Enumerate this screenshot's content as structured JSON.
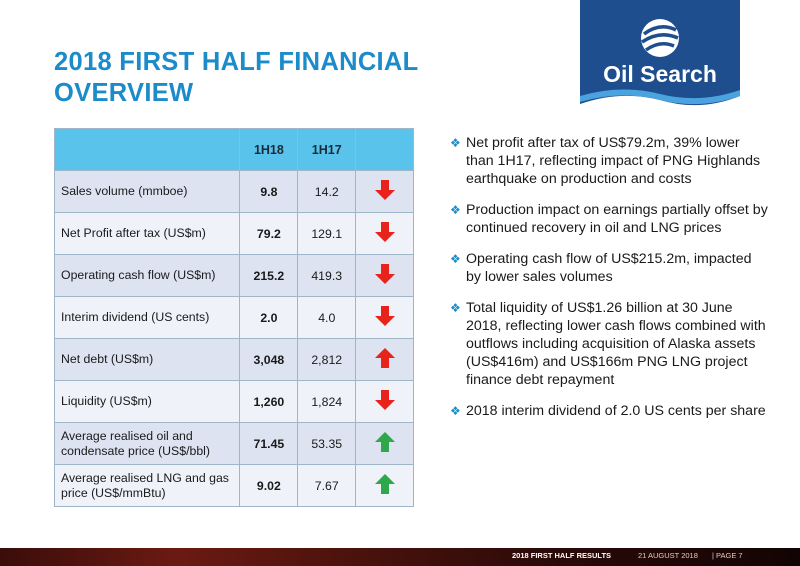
{
  "title": {
    "line1": "2018 FIRST HALF FINANCIAL",
    "line2": "OVERVIEW"
  },
  "logo": {
    "text": "Oil Search",
    "icon": "oil-search-globe-logo"
  },
  "table": {
    "headers": [
      "",
      "1H18",
      "1H17",
      ""
    ],
    "rows": [
      {
        "label": "Sales volume (mmboe)",
        "cur": "9.8",
        "prev": "14.2",
        "trend": "down"
      },
      {
        "label": "Net Profit after tax (US$m)",
        "cur": "79.2",
        "prev": "129.1",
        "trend": "down"
      },
      {
        "label": "Operating cash flow (US$m)",
        "cur": "215.2",
        "prev": "419.3",
        "trend": "down"
      },
      {
        "label": "Interim dividend (US cents)",
        "cur": "2.0",
        "prev": "4.0",
        "trend": "down"
      },
      {
        "label": "Net debt (US$m)",
        "cur": "3,048",
        "prev": "2,812",
        "trend": "up-red"
      },
      {
        "label": "Liquidity (US$m)",
        "cur": "1,260",
        "prev": "1,824",
        "trend": "down"
      },
      {
        "label": "Average realised oil and condensate price (US$/bbl)",
        "cur": "71.45",
        "prev": "53.35",
        "trend": "up-green"
      },
      {
        "label": "Average realised LNG and gas price (US$/mmBtu)",
        "cur": "9.02",
        "prev": "7.67",
        "trend": "up-green"
      }
    ],
    "colors": {
      "header": "#59c3ec",
      "down": "#e8231c",
      "up_red": "#e8231c",
      "up_green": "#2ea84a"
    }
  },
  "bullets": [
    "Net profit after tax of US$79.2m, 39% lower than 1H17, reflecting impact of PNG Highlands earthquake on production and costs",
    "Production impact on earnings partially offset by continued recovery in oil and LNG prices",
    "Operating cash flow of US$215.2m, impacted by lower sales volumes",
    "Total liquidity of US$1.26 billion at 30 June 2018, reflecting lower cash flows combined with outflows including acquisition of Alaska assets (US$416m) and US$166m PNG LNG project finance debt repayment",
    "2018 interim dividend of 2.0 US cents per share"
  ],
  "bullet_icon": "diamond-bullet-icon",
  "footer": {
    "results": "2018 FIRST HALF RESULTS",
    "date": "21 AUGUST 2018",
    "page": "| PAGE 7"
  }
}
